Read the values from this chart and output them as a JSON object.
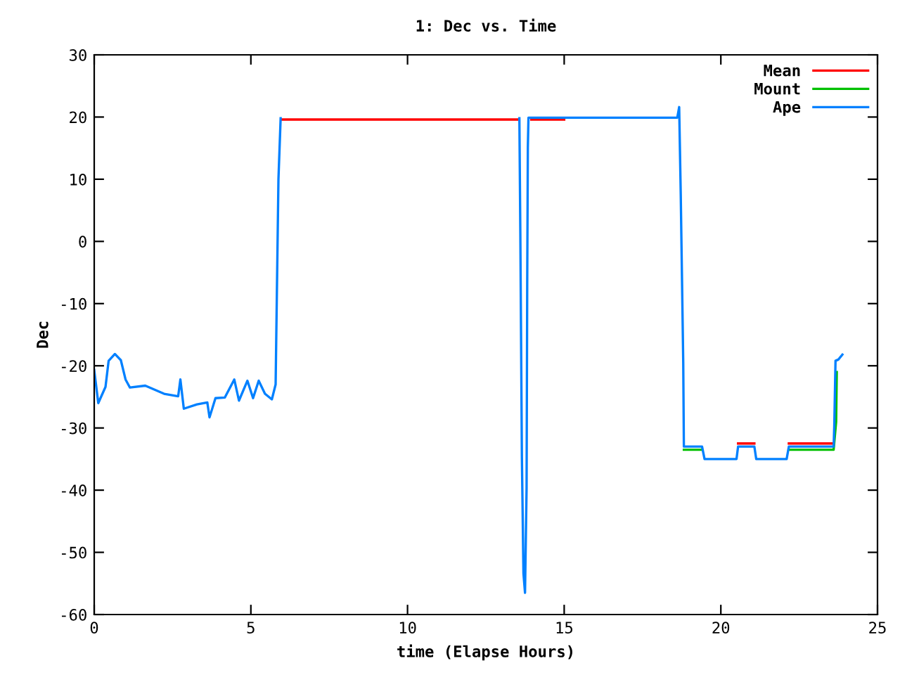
{
  "chart_data": {
    "type": "line",
    "title": "1: Dec vs. Time",
    "xlabel": "time (Elapse Hours)",
    "ylabel": "Dec",
    "xlim": [
      0,
      25
    ],
    "ylim": [
      -60,
      30
    ],
    "xticks": [
      0,
      5,
      10,
      15,
      20,
      25
    ],
    "yticks": [
      -60,
      -50,
      -40,
      -30,
      -20,
      -10,
      0,
      10,
      20,
      30
    ],
    "legend": "top right",
    "grid": false,
    "series": [
      {
        "name": "Mean",
        "color": "#ff0000",
        "x": [
          6.0,
          13.5,
          13.7,
          13.95,
          15.0,
          17.0,
          20.55,
          21.07,
          21.1,
          22.17,
          23.6
        ],
        "values": [
          19.6,
          19.6,
          null,
          19.6,
          19.6,
          null,
          -32.5,
          -32.5,
          null,
          -32.5,
          -32.5
        ]
      },
      {
        "name": "Mount",
        "color": "#00c000",
        "x": [
          18.82,
          19.4,
          20.0,
          22.17,
          23.6,
          23.68,
          23.7
        ],
        "values": [
          -33.5,
          -33.5,
          null,
          -33.5,
          -33.5,
          -29.0,
          -21.0
        ]
      },
      {
        "name": "Ape",
        "color": "#0080ff",
        "x": [
          0,
          0.13,
          0.36,
          0.46,
          0.66,
          0.85,
          1.0,
          1.14,
          1.63,
          2.23,
          2.68,
          2.75,
          2.86,
          3.28,
          3.61,
          3.68,
          3.87,
          4.17,
          4.47,
          4.62,
          4.89,
          5.07,
          5.25,
          5.45,
          5.67,
          5.79,
          5.88,
          5.95,
          6.1,
          13.5,
          13.57,
          13.6,
          13.65,
          13.7,
          13.75,
          13.8,
          13.82,
          13.84,
          13.86,
          18.61,
          18.67,
          18.72,
          18.8,
          18.82,
          19.4,
          19.48,
          20.5,
          20.55,
          21.07,
          21.13,
          22.1,
          22.17,
          23.6,
          23.62,
          23.66,
          23.75,
          23.88
        ],
        "values": [
          -20.7,
          -26.0,
          -23.4,
          -19.2,
          -18.1,
          -19.1,
          -22.2,
          -23.5,
          -23.2,
          -24.5,
          -24.9,
          -22.2,
          -26.9,
          -26.2,
          -25.9,
          -28.3,
          -25.2,
          -25.1,
          -22.2,
          -25.6,
          -22.4,
          -25.2,
          -22.4,
          -24.5,
          -25.4,
          -23.0,
          10.0,
          19.8,
          null,
          null,
          19.8,
          1.5,
          -34.7,
          -53.4,
          -56.5,
          -39.6,
          -6.8,
          15.1,
          19.9,
          19.9,
          21.6,
          7.6,
          -19.5,
          -33.0,
          -33.0,
          -35.0,
          -35.0,
          -33.0,
          -33.0,
          -35.0,
          -35.0,
          -33.0,
          -33.0,
          -29.7,
          -19.2,
          -19.0,
          -18.2
        ]
      }
    ]
  }
}
